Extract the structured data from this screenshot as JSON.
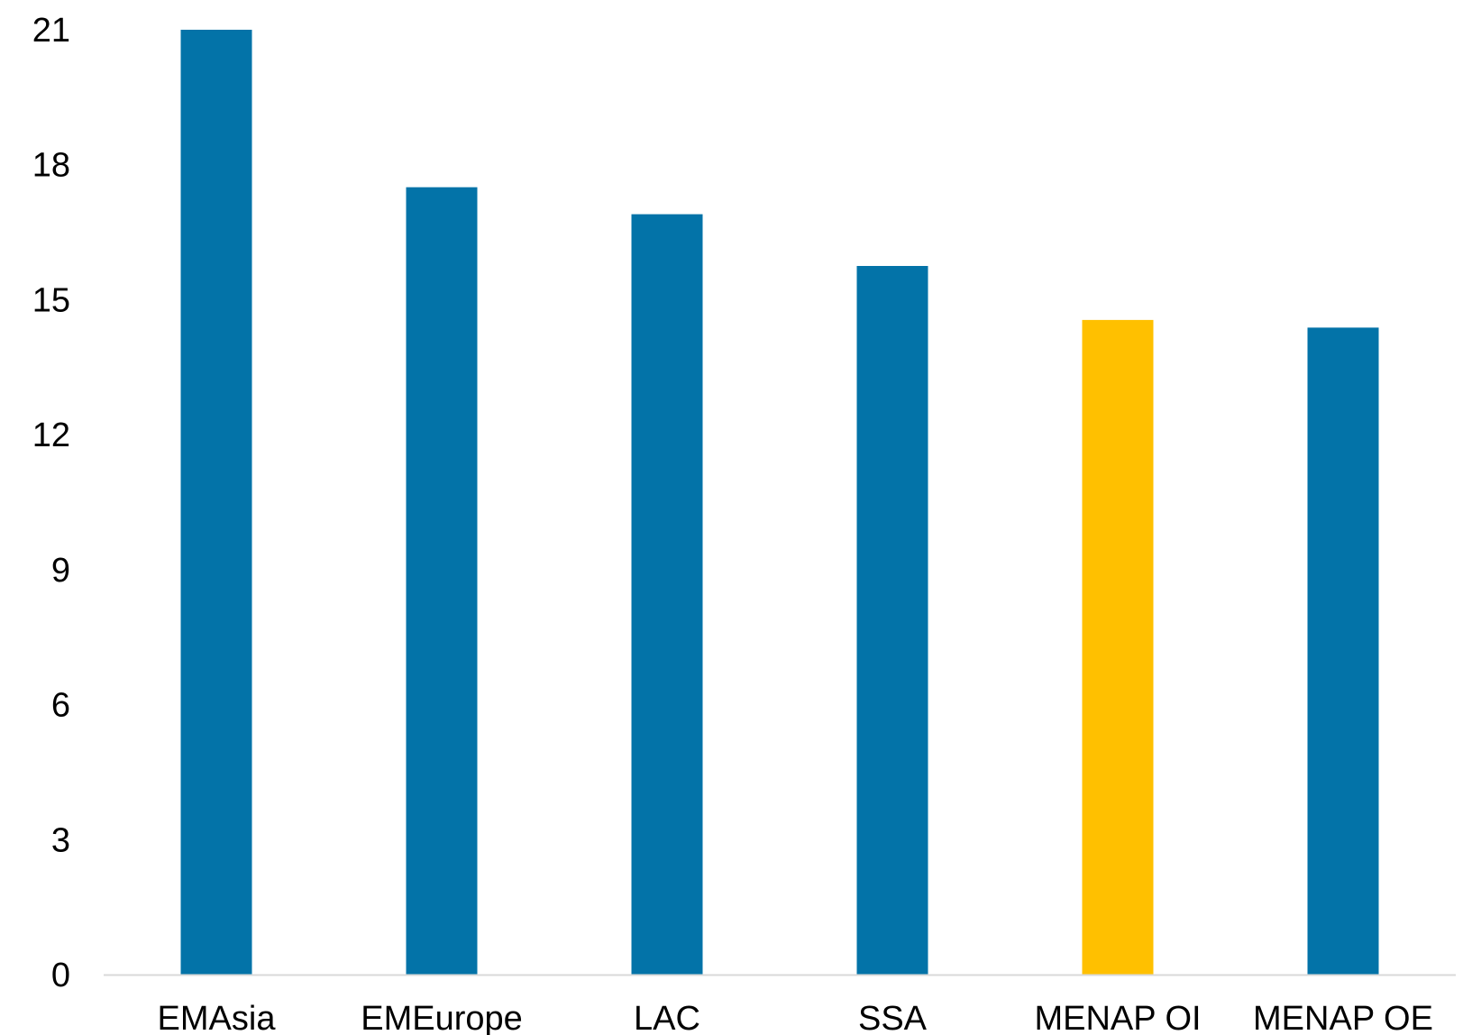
{
  "chart_data": {
    "type": "bar",
    "title": "",
    "xlabel": "",
    "ylabel": "",
    "categories": [
      "EMAsia",
      "EMEurope",
      "LAC",
      "SSA",
      "MENAP OI",
      "MENAP OE"
    ],
    "values": [
      21.0,
      17.5,
      16.9,
      15.75,
      14.55,
      14.38
    ],
    "highlight_category": "MENAP OI",
    "ylim": [
      0,
      21
    ],
    "yticks": [
      "0",
      "3",
      "6",
      "9",
      "12",
      "15",
      "18",
      "21"
    ],
    "grid": false,
    "legend": "none",
    "colors": {
      "bar": "#0373A8",
      "highlight": "#FFC000",
      "axis": "#D9D9D9"
    }
  }
}
